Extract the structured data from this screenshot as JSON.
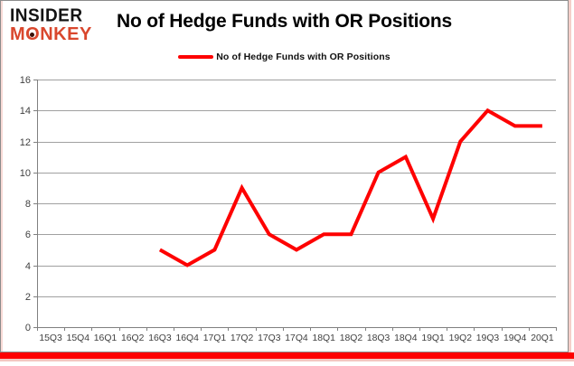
{
  "logo": {
    "line1": "INSIDER",
    "line2": "MONKEY"
  },
  "header": {
    "title": "No of Hedge Funds with OR Positions",
    "legend_label": "No of Hedge Funds with OR Positions"
  },
  "colors": {
    "series_line": "#fe0101",
    "logo_accent": "#d9472d",
    "grid": "#a0a0a0",
    "axis": "#808080",
    "tick_label": "#404040",
    "bottom_bar": "#fe0101",
    "bar_shadow": "#f3c7c1",
    "frame_border": "#8c8c8c"
  },
  "chart_data": {
    "type": "line",
    "title": "No of Hedge Funds with OR Positions",
    "legend_entries": [
      "No of Hedge Funds with OR Positions"
    ],
    "legend_position": "top-center",
    "grid": "horizontal",
    "xlabel": "",
    "ylabel": "",
    "ylim": [
      0,
      16
    ],
    "ytick_step": 2,
    "yticks": [
      0,
      2,
      4,
      6,
      8,
      10,
      12,
      14,
      16
    ],
    "categories": [
      "15Q3",
      "15Q4",
      "16Q1",
      "16Q2",
      "16Q3",
      "16Q4",
      "17Q1",
      "17Q2",
      "17Q3",
      "17Q4",
      "18Q1",
      "18Q2",
      "18Q3",
      "18Q4",
      "19Q1",
      "19Q2",
      "19Q3",
      "19Q4",
      "20Q1"
    ],
    "series": [
      {
        "name": "No of Hedge Funds with OR Positions",
        "color": "#fe0101",
        "values": [
          null,
          null,
          null,
          null,
          5,
          4,
          5,
          9,
          6,
          5,
          6,
          6,
          10,
          11,
          7,
          12,
          14,
          13,
          13
        ]
      }
    ]
  }
}
